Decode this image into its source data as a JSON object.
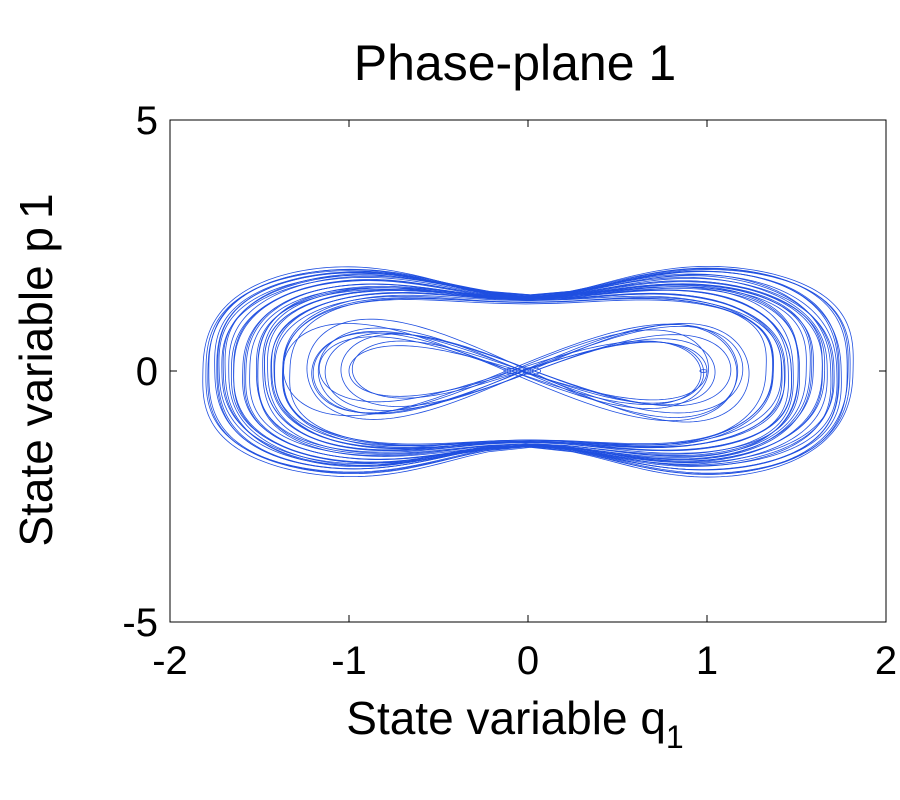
{
  "chart_data": {
    "type": "line",
    "title": "Phase-plane 1",
    "xlabel": "State variable q",
    "xlabel_sub": "1",
    "ylabel": "State variable p",
    "ylabel_sub": "1",
    "xlim": [
      -2,
      2
    ],
    "ylim": [
      -5,
      5
    ],
    "x_ticks": [
      -2,
      -1,
      0,
      1,
      2
    ],
    "y_ticks": [
      -5,
      0,
      5
    ],
    "x_tick_labels": [
      "-2",
      "-1",
      "0",
      "1",
      "2"
    ],
    "y_tick_labels": [
      "-5",
      "0",
      "5"
    ],
    "grid": false,
    "series": [
      {
        "color": "#1f4fe0",
        "description_points": {
          "x_extent": [
            -1.83,
            1.83
          ],
          "y_extent": [
            -2.25,
            2.25
          ],
          "inner_lobe_x": [
            -1.25,
            1.0
          ],
          "inner_lobe_y": [
            -0.75,
            0.75
          ],
          "center": [
            0,
            0
          ]
        }
      }
    ]
  }
}
